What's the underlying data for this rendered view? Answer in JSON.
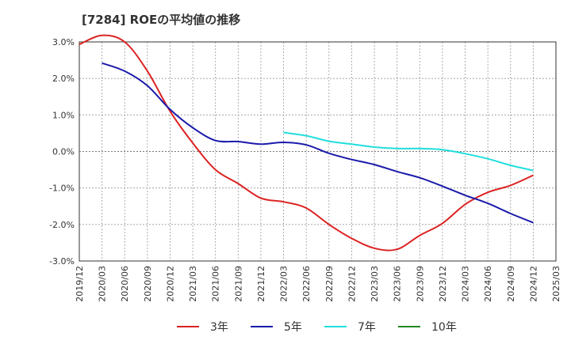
{
  "chart_data": {
    "type": "line",
    "title": "[7284]  ROEの平均値の推移",
    "xlabel": "",
    "ylabel": "",
    "x_ticks": [
      "2019/12",
      "2020/03",
      "2020/06",
      "2020/09",
      "2020/12",
      "2021/03",
      "2021/06",
      "2021/09",
      "2021/12",
      "2022/03",
      "2022/06",
      "2022/09",
      "2022/12",
      "2023/03",
      "2023/06",
      "2023/09",
      "2023/12",
      "2024/03",
      "2024/06",
      "2024/09",
      "2024/12",
      "2025/03"
    ],
    "y_ticks": [
      "3.0%",
      "2.0%",
      "1.0%",
      "0.0%",
      "-1.0%",
      "-2.0%",
      "-3.0%"
    ],
    "ylim": [
      -3.0,
      3.0
    ],
    "grid": true,
    "legend_position": "bottom",
    "series": [
      {
        "name": "3年",
        "color": "#dd2222",
        "points": [
          [
            "2019/12",
            2.93
          ],
          [
            "2020/03",
            3.18
          ],
          [
            "2020/06",
            3.0
          ],
          [
            "2020/09",
            2.2
          ],
          [
            "2020/12",
            1.1
          ],
          [
            "2021/03",
            0.23
          ],
          [
            "2021/06",
            -0.5
          ],
          [
            "2021/09",
            -0.88
          ],
          [
            "2021/12",
            -1.28
          ],
          [
            "2022/03",
            -1.38
          ],
          [
            "2022/06",
            -1.55
          ],
          [
            "2022/09",
            -2.0
          ],
          [
            "2022/12",
            -2.38
          ],
          [
            "2023/03",
            -2.65
          ],
          [
            "2023/06",
            -2.68
          ],
          [
            "2023/09",
            -2.3
          ],
          [
            "2023/12",
            -1.97
          ],
          [
            "2024/03",
            -1.45
          ],
          [
            "2024/06",
            -1.12
          ],
          [
            "2024/09",
            -0.93
          ],
          [
            "2024/12",
            -0.65
          ]
        ]
      },
      {
        "name": "5年",
        "color": "#1a1aaa",
        "points": [
          [
            "2020/03",
            2.42
          ],
          [
            "2020/06",
            2.2
          ],
          [
            "2020/09",
            1.8
          ],
          [
            "2020/12",
            1.15
          ],
          [
            "2021/03",
            0.65
          ],
          [
            "2021/06",
            0.3
          ],
          [
            "2021/09",
            0.27
          ],
          [
            "2021/12",
            0.2
          ],
          [
            "2022/03",
            0.25
          ],
          [
            "2022/06",
            0.18
          ],
          [
            "2022/09",
            -0.05
          ],
          [
            "2022/12",
            -0.22
          ],
          [
            "2023/03",
            -0.36
          ],
          [
            "2023/06",
            -0.55
          ],
          [
            "2023/09",
            -0.72
          ],
          [
            "2023/12",
            -0.95
          ],
          [
            "2024/03",
            -1.2
          ],
          [
            "2024/06",
            -1.42
          ],
          [
            "2024/09",
            -1.7
          ],
          [
            "2024/12",
            -1.95
          ]
        ]
      },
      {
        "name": "7年",
        "color": "#22dddd",
        "points": [
          [
            "2022/03",
            0.52
          ],
          [
            "2022/06",
            0.43
          ],
          [
            "2022/09",
            0.28
          ],
          [
            "2022/12",
            0.2
          ],
          [
            "2023/03",
            0.12
          ],
          [
            "2023/06",
            0.08
          ],
          [
            "2023/09",
            0.08
          ],
          [
            "2023/12",
            0.05
          ],
          [
            "2024/03",
            -0.06
          ],
          [
            "2024/06",
            -0.2
          ],
          [
            "2024/09",
            -0.38
          ],
          [
            "2024/12",
            -0.52
          ]
        ]
      },
      {
        "name": "10年",
        "color": "#228822",
        "points": []
      }
    ]
  }
}
